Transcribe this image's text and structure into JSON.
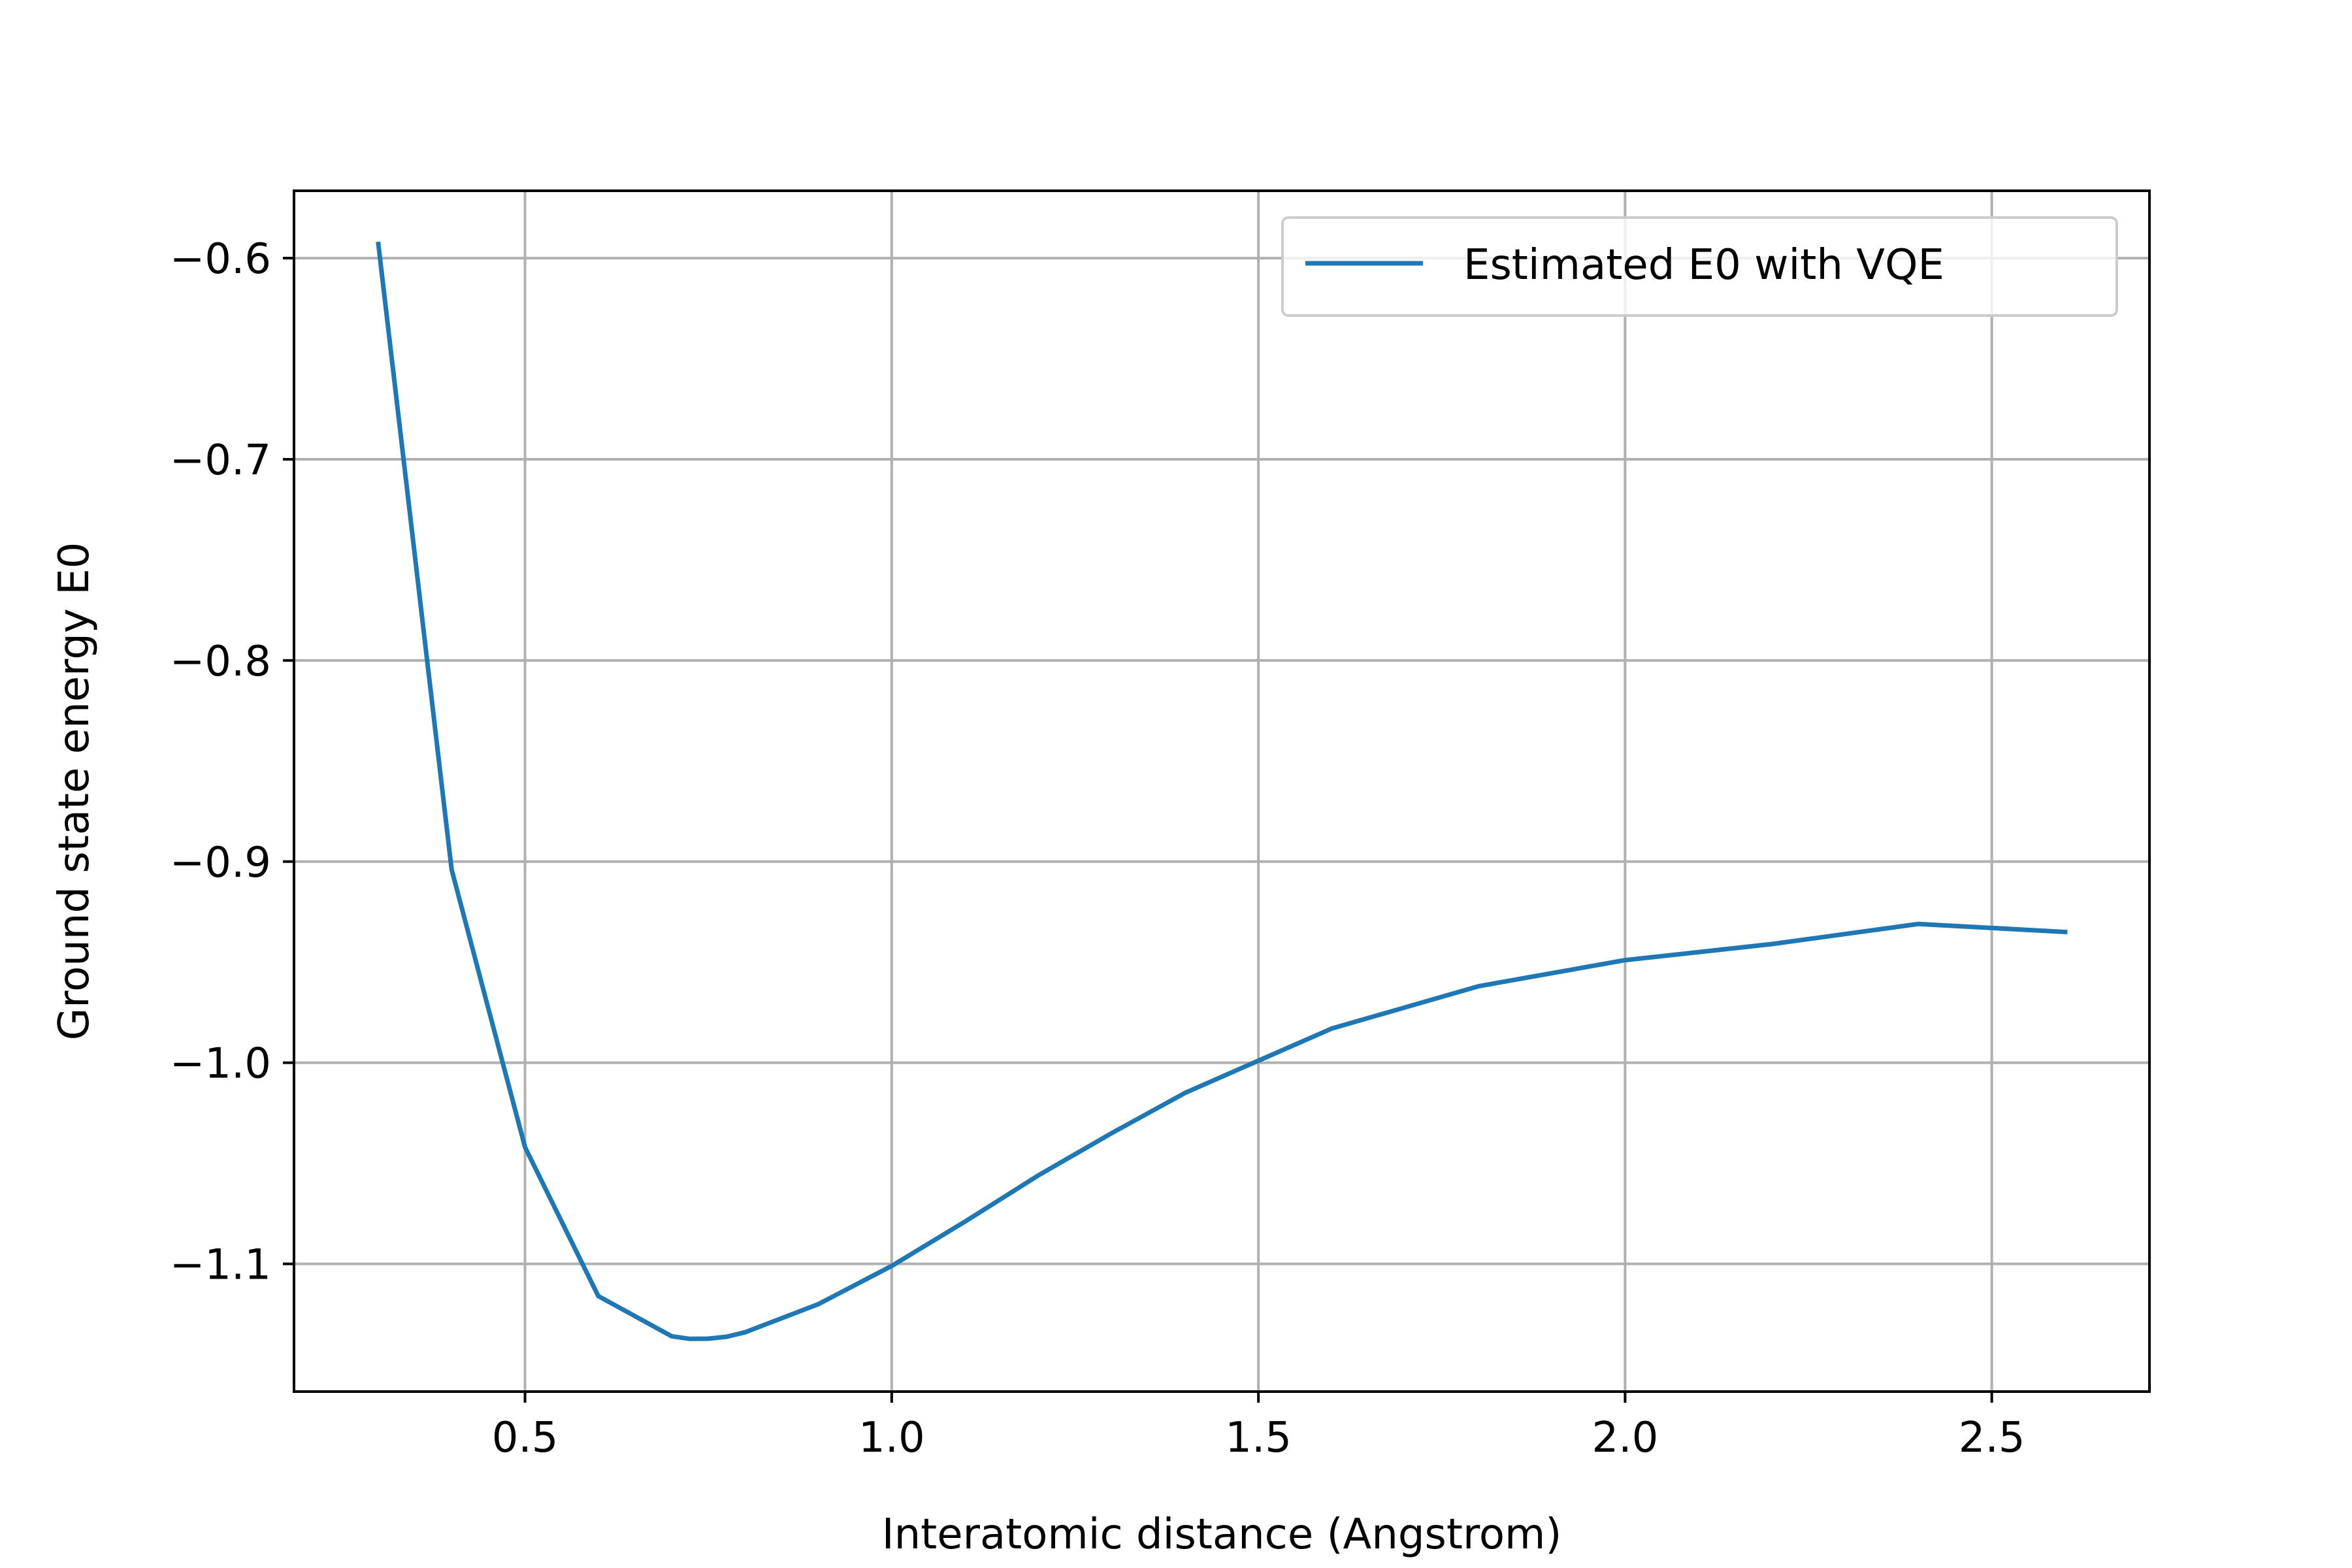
{
  "chart_data": {
    "type": "line",
    "title": "",
    "xlabel": "Interatomic distance (Angstrom)",
    "ylabel": "Ground state energy E0",
    "xlim": [
      0.185,
      2.715
    ],
    "ylim": [
      -1.1635,
      -0.5665
    ],
    "xticks": [
      0.5,
      1.0,
      1.5,
      2.0,
      2.5
    ],
    "xtick_labels": [
      "0.5",
      "1.0",
      "1.5",
      "2.0",
      "2.5"
    ],
    "yticks": [
      -0.6,
      -0.7,
      -0.8,
      -0.9,
      -1.0,
      -1.1
    ],
    "ytick_labels": [
      "−0.6",
      "−0.7",
      "−0.8",
      "−0.9",
      "−1.0",
      "−1.1"
    ],
    "grid": true,
    "legend_position": "upper right",
    "series": [
      {
        "name": "Estimated E0 with VQE",
        "color": "#1f77b4",
        "x": [
          0.3,
          0.4,
          0.5,
          0.6,
          0.7,
          0.725,
          0.75,
          0.775,
          0.8,
          0.9,
          1.0,
          1.1,
          1.2,
          1.3,
          1.4,
          1.5,
          1.6,
          1.8,
          2.0,
          2.2,
          2.4,
          2.6
        ],
        "y": [
          -0.593,
          -0.904,
          -1.042,
          -1.116,
          -1.136,
          -1.1373,
          -1.1372,
          -1.1362,
          -1.134,
          -1.12,
          -1.101,
          -1.079,
          -1.056,
          -1.035,
          -1.015,
          -0.999,
          -0.983,
          -0.962,
          -0.949,
          -0.941,
          -0.931,
          -0.935
        ]
      }
    ]
  }
}
